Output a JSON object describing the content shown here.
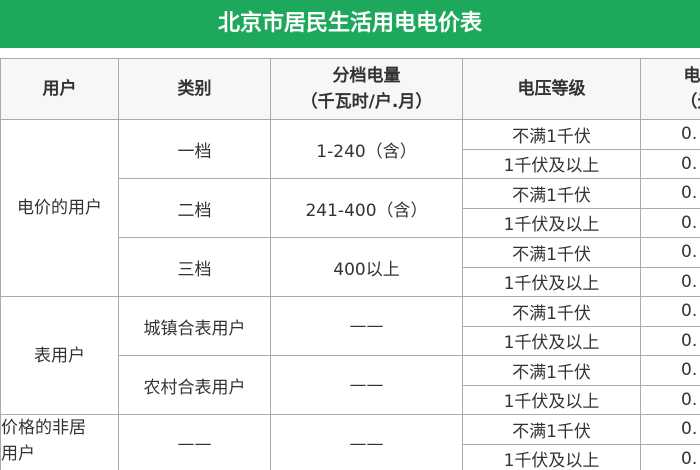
{
  "header": {
    "title": "北京市居民生活用电电价表"
  },
  "table": {
    "columns": [
      [
        "用户"
      ],
      [
        "类别"
      ],
      [
        "分档电量",
        "（千瓦时/户.月）"
      ],
      [
        "电压等级"
      ],
      [
        "电价",
        "（元/"
      ]
    ],
    "groups": [
      {
        "user": [
          "电价的用户"
        ],
        "tiers": [
          {
            "category": "一档",
            "amount": "1-240（含）",
            "levels": [
              {
                "voltage": "不满1千伏",
                "price": "0."
              },
              {
                "voltage": "1千伏及以上",
                "price": "0."
              }
            ]
          },
          {
            "category": "二档",
            "amount": "241-400（含）",
            "levels": [
              {
                "voltage": "不满1千伏",
                "price": "0."
              },
              {
                "voltage": "1千伏及以上",
                "price": "0."
              }
            ]
          },
          {
            "category": "三档",
            "amount": "400以上",
            "levels": [
              {
                "voltage": "不满1千伏",
                "price": "0."
              },
              {
                "voltage": "1千伏及以上",
                "price": "0."
              }
            ]
          }
        ]
      },
      {
        "user": [
          "表用户"
        ],
        "tiers": [
          {
            "category": "城镇合表用户",
            "amount": "——",
            "levels": [
              {
                "voltage": "不满1千伏",
                "price": "0."
              },
              {
                "voltage": "1千伏及以上",
                "price": "0."
              }
            ]
          },
          {
            "category": "农村合表用户",
            "amount": "——",
            "levels": [
              {
                "voltage": "不满1千伏",
                "price": "0."
              },
              {
                "voltage": "1千伏及以上",
                "price": "0."
              }
            ]
          }
        ]
      },
      {
        "user": [
          "价格的非居",
          "用户"
        ],
        "tiers": [
          {
            "category": "——",
            "amount": "——",
            "levels": [
              {
                "voltage": "不满1千伏",
                "price": "0."
              },
              {
                "voltage": "1千伏及以上",
                "price": "0."
              }
            ]
          }
        ]
      }
    ]
  }
}
